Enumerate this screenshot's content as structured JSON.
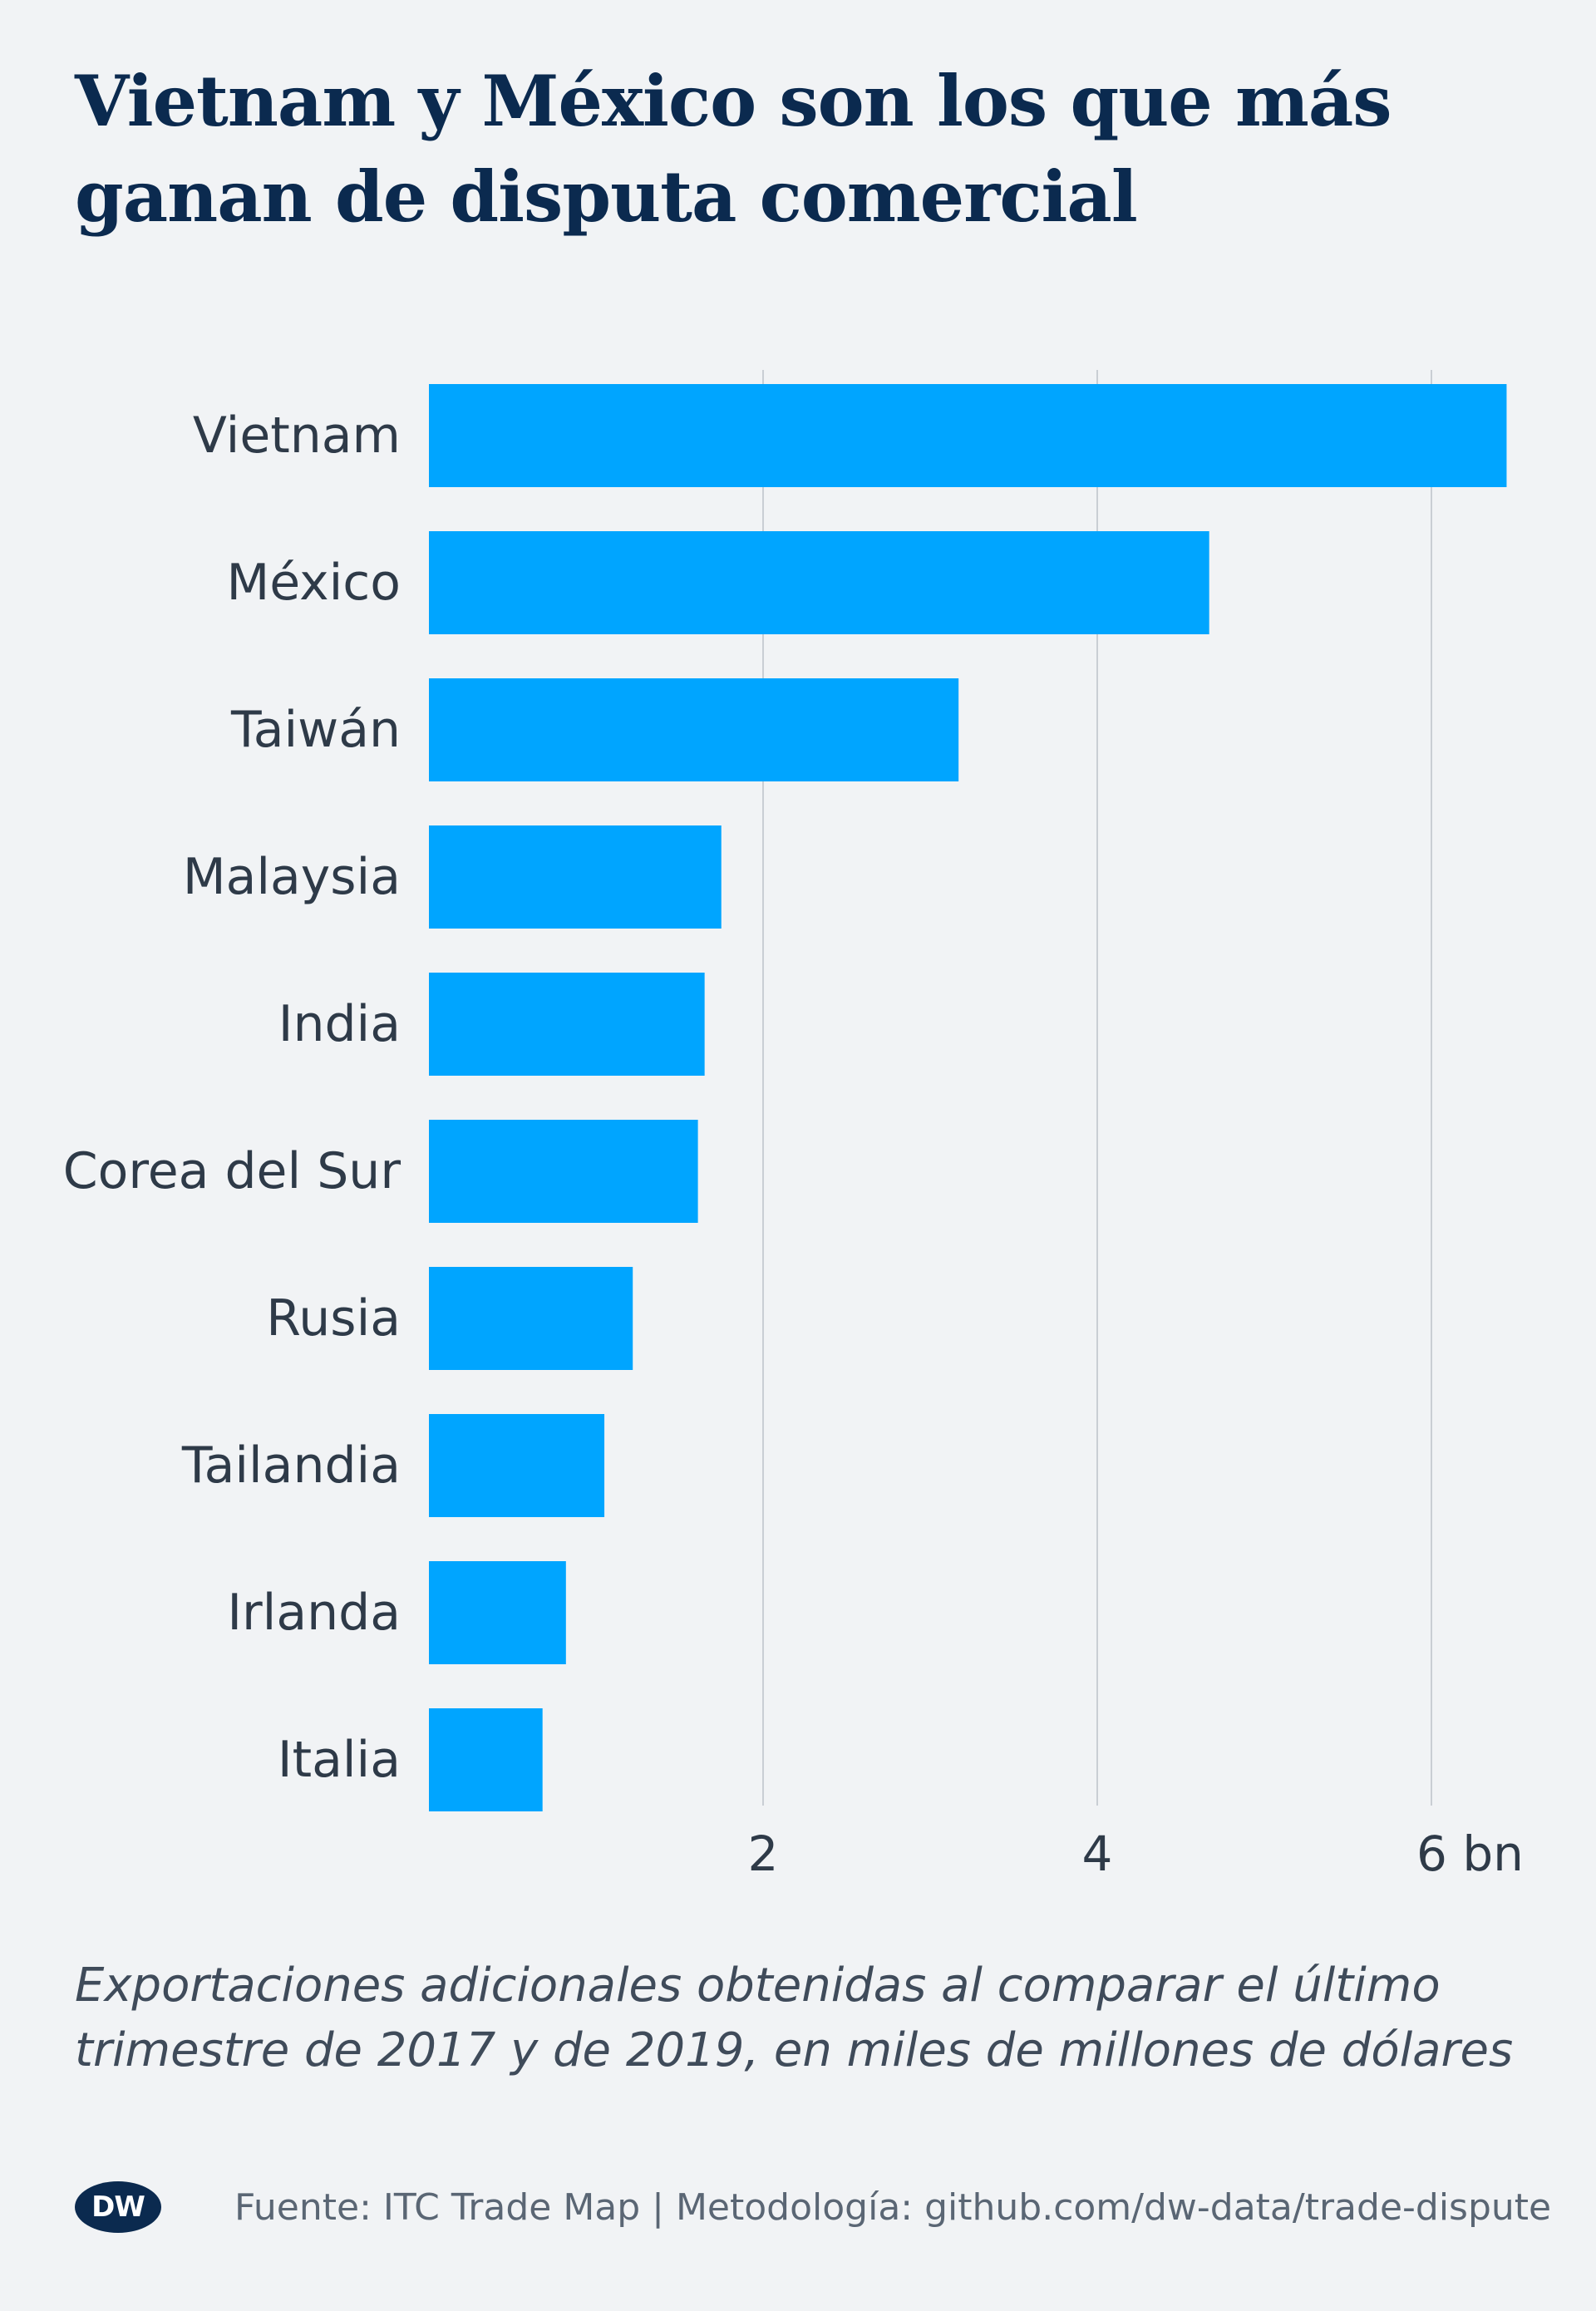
{
  "title": "Vietnam y México son los que más ganan de disputa comercial",
  "caption": "Exportaciones adicionales obtenidas al comparar el último trimestre de 2017 y de 2019, en miles de millones de dólares",
  "source": "Fuente: ITC Trade Map | Metodología: github.com/dw-data/trade-dispute",
  "logo": "DW",
  "colors": {
    "bar": "#00a5ff",
    "grid": "#c9ced4",
    "background": "#f1f3f5",
    "title": "#0b2a4f"
  },
  "chart_data": {
    "type": "bar",
    "orientation": "horizontal",
    "categories": [
      "Vietnam",
      "México",
      "Taiwán",
      "Malaysia",
      "India",
      "Corea del Sur",
      "Rusia",
      "Tailandia",
      "Irlanda",
      "Italia"
    ],
    "values": [
      6.45,
      4.67,
      3.17,
      1.75,
      1.65,
      1.61,
      1.22,
      1.05,
      0.82,
      0.68
    ],
    "xlim": [
      0,
      6.5
    ],
    "ticks": [
      {
        "value": 2,
        "label": "2"
      },
      {
        "value": 4,
        "label": "4"
      },
      {
        "value": 6,
        "label": "6 bn"
      }
    ],
    "grid": true
  }
}
